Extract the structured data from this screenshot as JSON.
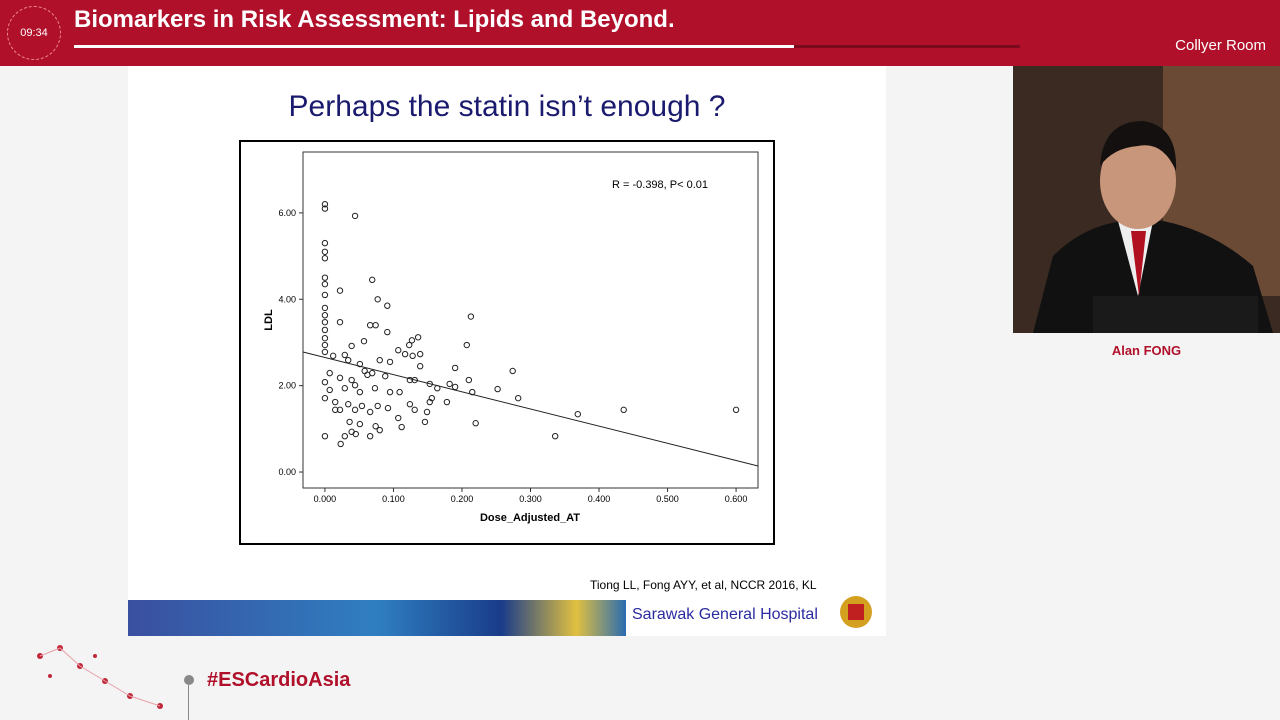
{
  "header": {
    "timer": "09:34",
    "title": "Biomarkers in Risk Assessment: Lipids and Beyond.",
    "room": "Collyer Room"
  },
  "slide": {
    "title": "Perhaps the statin isn’t enough ?",
    "citation": "Tiong LL, Fong AYY, et al, NCCR 2016, KL",
    "banner_text": "Sarawak General Hospital"
  },
  "speaker": {
    "name": "Alan FONG"
  },
  "footer": {
    "hashtag": "#ESCardioAsia"
  },
  "chart_data": {
    "type": "scatter",
    "xlabel": "Dose_Adjusted_AT",
    "ylabel": "LDL",
    "annotation": "R = -0.398, P< 0.01",
    "color": "#222222",
    "x": [
      0,
      0,
      0.044,
      0,
      0,
      0,
      0,
      0,
      0.022,
      0.069,
      0.077,
      0.091,
      0,
      0,
      0,
      0,
      0,
      0,
      0,
      0,
      0.213,
      0.066,
      0.074,
      0.022,
      0.091,
      0.136,
      0.127,
      0.123,
      0.207,
      0.057,
      0.039,
      0.107,
      0.117,
      0.139,
      0.128,
      0.012,
      0.029,
      0.034,
      0.095,
      0.08,
      0.051,
      0.139,
      0.19,
      0.274,
      0.069,
      0.058,
      0.007,
      0.088,
      0.022,
      0.039,
      0.124,
      0.131,
      0.21,
      0.153,
      0.164,
      0.182,
      0.252,
      0.19,
      0,
      0.007,
      0.029,
      0.051,
      0.073,
      0.095,
      0.109,
      0.215,
      0.282,
      0.156,
      0.153,
      0.178,
      0.124,
      0,
      0.015,
      0.034,
      0.054,
      0.077,
      0.092,
      0.131,
      0.149,
      0.022,
      0.044,
      0.066,
      0.369,
      0.436,
      0.6,
      0.107,
      0.036,
      0.051,
      0.146,
      0.22,
      0.074,
      0.112,
      0.08,
      0.039,
      0.045,
      0.029,
      0,
      0.066,
      0.336,
      0.023,
      0.015,
      0.062,
      0.044
    ],
    "y": [
      6.2,
      6.1,
      5.93,
      5.3,
      5.1,
      4.95,
      4.5,
      4.35,
      4.2,
      4.45,
      4.0,
      3.85,
      4.1,
      3.8,
      3.63,
      3.47,
      3.29,
      3.1,
      2.94,
      2.78,
      3.6,
      3.4,
      3.4,
      3.47,
      3.24,
      3.12,
      3.05,
      2.94,
      2.94,
      3.03,
      2.92,
      2.82,
      2.73,
      2.73,
      2.69,
      2.69,
      2.71,
      2.59,
      2.55,
      2.59,
      2.5,
      2.45,
      2.41,
      2.34,
      2.29,
      2.34,
      2.29,
      2.22,
      2.18,
      2.13,
      2.13,
      2.13,
      2.13,
      2.04,
      1.94,
      2.04,
      1.92,
      1.97,
      2.08,
      1.9,
      1.94,
      1.85,
      1.94,
      1.85,
      1.85,
      1.85,
      1.71,
      1.71,
      1.62,
      1.62,
      1.57,
      1.71,
      1.62,
      1.57,
      1.53,
      1.53,
      1.48,
      1.44,
      1.39,
      1.44,
      1.44,
      1.39,
      1.34,
      1.44,
      1.44,
      1.25,
      1.16,
      1.11,
      1.16,
      1.13,
      1.06,
      1.04,
      0.97,
      0.93,
      0.88,
      0.83,
      0.83,
      0.83,
      0.83,
      0.65,
      1.44,
      2.25,
      2.01
    ],
    "trendline": {
      "x": [
        -0.032,
        0.632
      ],
      "y": [
        2.78,
        0.14
      ]
    },
    "xlim": [
      -0.032,
      0.632
    ],
    "ylim": [
      -0.37,
      7.41
    ],
    "xticks": [
      {
        "value": 0,
        "label": "0.000"
      },
      {
        "value": 0.1,
        "label": "0.100"
      },
      {
        "value": 0.2,
        "label": "0.200"
      },
      {
        "value": 0.3,
        "label": "0.300"
      },
      {
        "value": 0.4,
        "label": "0.400"
      },
      {
        "value": 0.5,
        "label": "0.500"
      },
      {
        "value": 0.6,
        "label": "0.600"
      }
    ],
    "yticks": [
      {
        "value": 0,
        "label": "0.00"
      },
      {
        "value": 2,
        "label": "2.00"
      },
      {
        "value": 4,
        "label": "4.00"
      },
      {
        "value": 6,
        "label": "6.00"
      }
    ]
  }
}
